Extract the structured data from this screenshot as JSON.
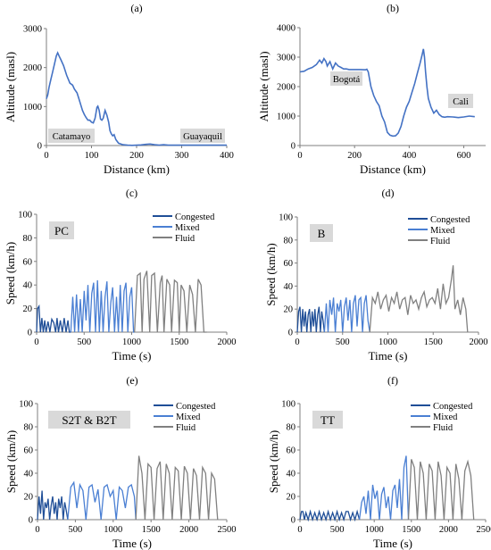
{
  "colors": {
    "altitude": "#4472C4",
    "congested": "#1F4E97",
    "mixed": "#4A7FD3",
    "fluid": "#808080",
    "label_box": "#D9D9D9",
    "annotation_text": "#1F3FA0",
    "axis": "#7F7F7F"
  },
  "chart_data": [
    {
      "type": "line",
      "panel": "(a)",
      "xlabel": "Distance (km)",
      "ylabel": "Altitude (masl)",
      "xlim": [
        0,
        400
      ],
      "ylim": [
        0,
        3000
      ],
      "xticks": [
        0,
        100,
        200,
        300,
        400
      ],
      "yticks": [
        0,
        1000,
        2000,
        3000
      ],
      "annotations": [
        "Catamayo",
        "Guayaquil"
      ],
      "x": [
        0,
        3,
        6,
        10,
        14,
        18,
        22,
        25,
        28,
        32,
        38,
        45,
        52,
        58,
        62,
        68,
        72,
        76,
        80,
        84,
        88,
        92,
        96,
        100,
        104,
        108,
        112,
        114,
        117,
        120,
        123,
        126,
        130,
        134,
        138,
        141,
        144,
        147,
        150,
        154,
        160,
        170,
        180,
        190,
        200,
        210,
        220,
        230,
        240,
        250,
        260,
        270,
        280,
        300,
        320,
        340,
        360,
        380,
        400
      ],
      "y": [
        1200,
        1300,
        1500,
        1700,
        1900,
        2100,
        2300,
        2380,
        2300,
        2200,
        2050,
        1800,
        1600,
        1550,
        1450,
        1350,
        1200,
        1050,
        900,
        800,
        720,
        650,
        650,
        600,
        580,
        700,
        980,
        1010,
        900,
        680,
        650,
        700,
        900,
        780,
        600,
        380,
        300,
        250,
        280,
        150,
        60,
        20,
        10,
        5,
        10,
        15,
        30,
        40,
        20,
        10,
        20,
        10,
        10,
        10,
        10,
        10,
        10,
        10,
        10
      ]
    },
    {
      "type": "line",
      "panel": "(b)",
      "xlabel": "Distance (km)",
      "ylabel": "Altitude (masl)",
      "xlim": [
        0,
        680
      ],
      "ylim": [
        0,
        4000
      ],
      "xticks": [
        0,
        200,
        400,
        600
      ],
      "yticks": [
        0,
        1000,
        2000,
        3000,
        4000
      ],
      "annotations": [
        "Bogotá",
        "Cali"
      ],
      "x": [
        0,
        15,
        30,
        45,
        60,
        72,
        80,
        88,
        95,
        100,
        110,
        120,
        130,
        140,
        150,
        160,
        170,
        180,
        200,
        220,
        240,
        245,
        250,
        260,
        270,
        280,
        290,
        300,
        310,
        320,
        330,
        340,
        350,
        360,
        370,
        380,
        390,
        400,
        410,
        420,
        430,
        440,
        448,
        452,
        456,
        460,
        465,
        470,
        480,
        490,
        500,
        510,
        520,
        530,
        540,
        560,
        580,
        600,
        620,
        640
      ],
      "y": [
        2500,
        2520,
        2600,
        2650,
        2750,
        2900,
        2800,
        2950,
        2850,
        2700,
        2850,
        2600,
        2800,
        2700,
        2650,
        2600,
        2600,
        2580,
        2580,
        2580,
        2570,
        2590,
        2500,
        2000,
        1700,
        1500,
        1350,
        1000,
        800,
        450,
        350,
        320,
        330,
        420,
        650,
        1000,
        1300,
        1500,
        1800,
        2100,
        2450,
        2800,
        3100,
        3280,
        3000,
        2500,
        2000,
        1600,
        1300,
        1100,
        1200,
        1050,
        980,
        960,
        980,
        970,
        950,
        970,
        1000,
        980
      ]
    },
    {
      "type": "line",
      "panel": "(c)",
      "label": "PC",
      "xlabel": "Time (s)",
      "ylabel": "Speed (km/h)",
      "xlim": [
        0,
        2000
      ],
      "ylim": [
        0,
        100
      ],
      "xticks": [
        0,
        500,
        1000,
        1500,
        2000
      ],
      "yticks": [
        0,
        20,
        40,
        60,
        80,
        100
      ],
      "series": [
        {
          "name": "Congested",
          "x": [
            0,
            10,
            25,
            40,
            55,
            70,
            85,
            100,
            120,
            140,
            160,
            180,
            200,
            215,
            230,
            250,
            270,
            290,
            310,
            330,
            345,
            360
          ],
          "y": [
            0,
            20,
            22,
            0,
            12,
            0,
            10,
            0,
            9,
            0,
            11,
            8,
            0,
            12,
            0,
            10,
            0,
            12,
            0,
            10,
            0,
            0
          ]
        },
        {
          "name": "Mixed",
          "x": [
            360,
            380,
            400,
            420,
            440,
            460,
            480,
            500,
            520,
            540,
            560,
            580,
            600,
            620,
            640,
            660,
            680,
            700,
            720,
            740,
            760,
            780,
            800,
            820,
            840,
            860,
            880,
            900,
            920,
            940,
            960,
            980,
            1000,
            1020,
            1030
          ],
          "y": [
            0,
            30,
            0,
            32,
            0,
            28,
            0,
            35,
            10,
            40,
            0,
            33,
            42,
            0,
            44,
            0,
            35,
            0,
            30,
            43,
            0,
            25,
            38,
            0,
            30,
            0,
            40,
            0,
            35,
            42,
            0,
            30,
            38,
            0,
            0
          ]
        },
        {
          "name": "Fluid",
          "x": [
            1030,
            1060,
            1090,
            1110,
            1130,
            1160,
            1190,
            1210,
            1240,
            1270,
            1300,
            1320,
            1340,
            1370,
            1400,
            1420,
            1450,
            1480,
            1500,
            1520,
            1550,
            1580,
            1610,
            1640,
            1670,
            1700,
            1730,
            1760,
            1790
          ],
          "y": [
            0,
            48,
            50,
            0,
            45,
            52,
            0,
            48,
            50,
            0,
            42,
            48,
            0,
            45,
            40,
            0,
            44,
            42,
            0,
            40,
            35,
            0,
            40,
            32,
            0,
            45,
            40,
            0,
            0
          ]
        }
      ]
    },
    {
      "type": "line",
      "panel": "(d)",
      "label": "B",
      "xlabel": "Time (s)",
      "ylabel": "Speed (km/h)",
      "xlim": [
        0,
        2000
      ],
      "ylim": [
        0,
        100
      ],
      "xticks": [
        0,
        500,
        1000,
        1500,
        2000
      ],
      "yticks": [
        0,
        20,
        40,
        60,
        80,
        100
      ],
      "series": [
        {
          "name": "Congested",
          "x": [
            0,
            15,
            30,
            45,
            60,
            75,
            90,
            105,
            120,
            135,
            150,
            165,
            180,
            195,
            210,
            225,
            240,
            255,
            270,
            285,
            300
          ],
          "y": [
            0,
            18,
            22,
            0,
            20,
            5,
            18,
            0,
            15,
            20,
            0,
            18,
            5,
            20,
            0,
            15,
            22,
            0,
            18,
            10,
            0
          ]
        },
        {
          "name": "Mixed",
          "x": [
            300,
            320,
            340,
            360,
            380,
            400,
            420,
            440,
            460,
            480,
            500,
            520,
            540,
            560,
            580,
            600,
            620,
            640,
            660,
            680,
            700,
            720,
            740,
            760,
            780,
            800
          ],
          "y": [
            0,
            25,
            0,
            28,
            15,
            30,
            0,
            25,
            18,
            28,
            0,
            22,
            30,
            10,
            28,
            0,
            25,
            32,
            5,
            28,
            30,
            0,
            25,
            32,
            10,
            0
          ]
        },
        {
          "name": "Fluid",
          "x": [
            800,
            830,
            860,
            890,
            920,
            950,
            980,
            1010,
            1040,
            1070,
            1100,
            1130,
            1160,
            1190,
            1220,
            1250,
            1280,
            1310,
            1340,
            1370,
            1400,
            1430,
            1460,
            1490,
            1520,
            1550,
            1580,
            1610,
            1640,
            1670,
            1700,
            1720,
            1740,
            1770,
            1800,
            1830,
            1860,
            1880
          ],
          "y": [
            0,
            30,
            25,
            35,
            20,
            28,
            32,
            18,
            30,
            25,
            35,
            20,
            28,
            30,
            15,
            32,
            25,
            28,
            20,
            30,
            35,
            22,
            28,
            30,
            25,
            38,
            20,
            42,
            25,
            30,
            45,
            58,
            20,
            28,
            15,
            30,
            20,
            0
          ]
        }
      ]
    },
    {
      "type": "line",
      "panel": "(e)",
      "label": "S2T & B2T",
      "xlabel": "Time (s)",
      "ylabel": "Speed (km/h)",
      "xlim": [
        0,
        2500
      ],
      "ylim": [
        0,
        100
      ],
      "xticks": [
        0,
        500,
        1000,
        1500,
        2000,
        2500
      ],
      "yticks": [
        0,
        20,
        40,
        60,
        80,
        100
      ],
      "series": [
        {
          "name": "Congested",
          "x": [
            0,
            20,
            40,
            60,
            80,
            100,
            120,
            140,
            160,
            180,
            200,
            220,
            240,
            260,
            280,
            300,
            320,
            340,
            360,
            380,
            400
          ],
          "y": [
            0,
            20,
            5,
            25,
            0,
            15,
            10,
            18,
            0,
            12,
            20,
            5,
            15,
            0,
            18,
            10,
            20,
            0,
            15,
            8,
            0
          ]
        },
        {
          "name": "Mixed",
          "x": [
            400,
            440,
            480,
            520,
            560,
            600,
            640,
            680,
            720,
            760,
            800,
            840,
            880,
            920,
            960,
            1000,
            1040,
            1080,
            1120,
            1160,
            1200,
            1240,
            1280,
            1300
          ],
          "y": [
            0,
            28,
            32,
            10,
            30,
            25,
            0,
            28,
            30,
            15,
            26,
            0,
            28,
            30,
            20,
            25,
            0,
            28,
            25,
            10,
            28,
            30,
            20,
            0
          ]
        },
        {
          "name": "Fluid",
          "x": [
            1300,
            1340,
            1380,
            1420,
            1460,
            1500,
            1540,
            1580,
            1620,
            1660,
            1700,
            1740,
            1780,
            1820,
            1860,
            1900,
            1940,
            1980,
            2020,
            2060,
            2100,
            2140,
            2180,
            2220,
            2260,
            2300,
            2340,
            2380
          ],
          "y": [
            0,
            55,
            40,
            0,
            48,
            45,
            0,
            44,
            50,
            0,
            48,
            40,
            0,
            45,
            42,
            0,
            46,
            40,
            0,
            44,
            38,
            0,
            45,
            40,
            0,
            40,
            35,
            0
          ]
        }
      ]
    },
    {
      "type": "line",
      "panel": "(f)",
      "label": "TT",
      "xlabel": "Time (s)",
      "ylabel": "Speed (km/h)",
      "xlim": [
        0,
        2500
      ],
      "ylim": [
        0,
        100
      ],
      "xticks": [
        0,
        500,
        1000,
        1500,
        2000,
        2500
      ],
      "yticks": [
        0,
        20,
        40,
        60,
        80,
        100
      ],
      "series": [
        {
          "name": "Congested",
          "x": [
            0,
            20,
            40,
            60,
            80,
            110,
            140,
            170,
            200,
            230,
            260,
            290,
            320,
            350,
            380,
            410,
            440,
            470,
            500,
            530,
            560,
            590,
            620,
            650,
            680,
            710,
            740,
            770,
            800
          ],
          "y": [
            0,
            7,
            7,
            0,
            6,
            0,
            7,
            0,
            6,
            0,
            7,
            0,
            6,
            0,
            7,
            0,
            6,
            0,
            7,
            0,
            6,
            0,
            7,
            7,
            0,
            6,
            0,
            7,
            0
          ]
        },
        {
          "name": "Mixed",
          "x": [
            800,
            830,
            860,
            890,
            920,
            950,
            980,
            1010,
            1040,
            1070,
            1100,
            1130,
            1160,
            1190,
            1220,
            1250,
            1280,
            1310,
            1340,
            1370,
            1400,
            1430,
            1460
          ],
          "y": [
            0,
            15,
            20,
            5,
            25,
            0,
            30,
            18,
            25,
            0,
            22,
            28,
            10,
            20,
            0,
            25,
            30,
            10,
            35,
            0,
            45,
            55,
            0
          ]
        },
        {
          "name": "Fluid",
          "x": [
            1460,
            1500,
            1540,
            1580,
            1620,
            1660,
            1700,
            1740,
            1780,
            1820,
            1860,
            1900,
            1940,
            1980,
            2020,
            2060,
            2100,
            2140,
            2180,
            2220,
            2260,
            2300,
            2340
          ],
          "y": [
            0,
            52,
            45,
            0,
            50,
            40,
            0,
            48,
            42,
            0,
            50,
            38,
            0,
            45,
            40,
            0,
            48,
            35,
            0,
            42,
            50,
            38,
            0
          ]
        }
      ]
    }
  ]
}
